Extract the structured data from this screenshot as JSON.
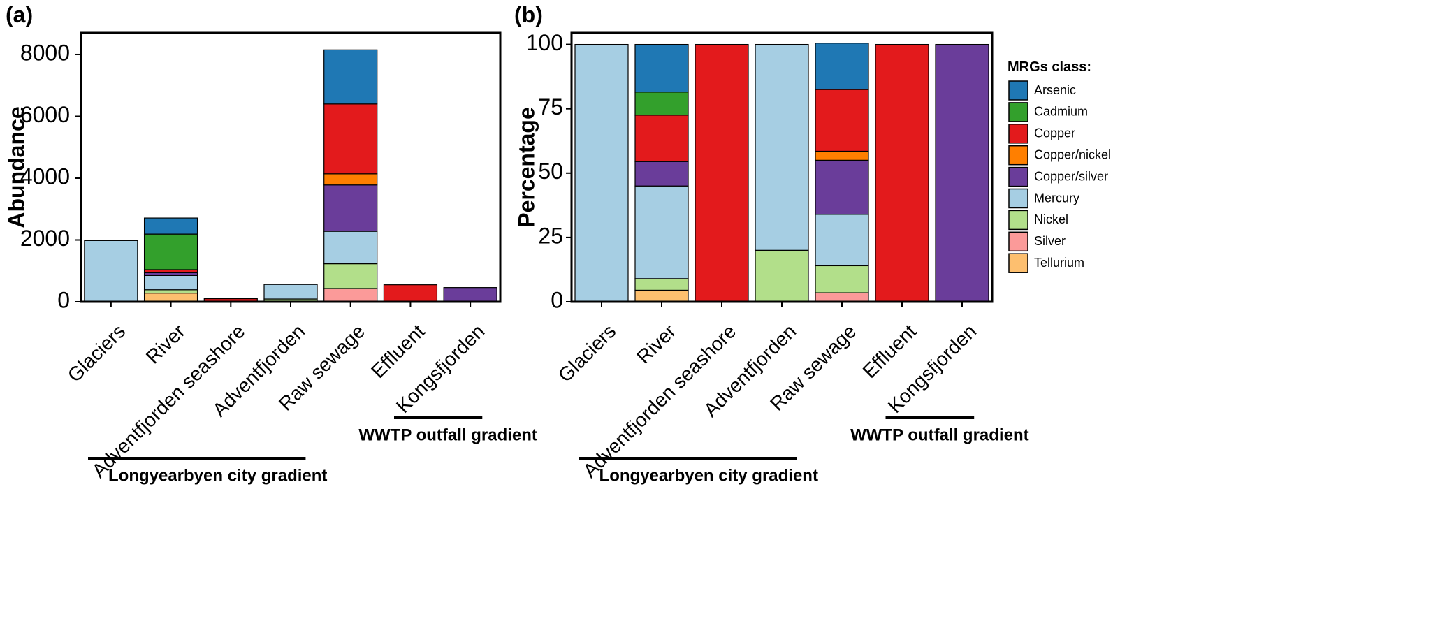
{
  "colors": {
    "Arsenic": "#1f78b4",
    "Cadmium": "#33a02c",
    "Copper": "#e31a1c",
    "Copper/nickel": "#ff7f00",
    "Copper/silver": "#6a3d9a",
    "Mercury": "#a6cee3",
    "Nickel": "#b2df8a",
    "Silver": "#fb9a99",
    "Tellurium": "#fdbf6f"
  },
  "legend": {
    "title": "MRGs class:",
    "items": [
      "Arsenic",
      "Cadmium",
      "Copper",
      "Copper/nickel",
      "Copper/silver",
      "Mercury",
      "Nickel",
      "Silver",
      "Tellurium"
    ]
  },
  "groups": {
    "city": "Longyearbyen city gradient",
    "wwtp": "WWTP outfall gradient"
  },
  "chart_data": [
    {
      "type": "bar",
      "stacked": true,
      "panel_label": "(a)",
      "ylabel": "Abundance",
      "ylim": [
        0,
        8700
      ],
      "yticks": [
        0,
        2000,
        4000,
        6000,
        8000
      ],
      "categories": [
        "Glaciers",
        "River",
        "Adventfjorden seashore",
        "Adventfjorden",
        "Raw sewage",
        "Effluent",
        "Kongsfjorden"
      ],
      "series": [
        {
          "name": "Tellurium",
          "values": [
            0,
            280,
            0,
            0,
            0,
            0,
            0
          ]
        },
        {
          "name": "Silver",
          "values": [
            0,
            0,
            0,
            0,
            430,
            0,
            0
          ]
        },
        {
          "name": "Nickel",
          "values": [
            0,
            110,
            0,
            90,
            800,
            0,
            0
          ]
        },
        {
          "name": "Mercury",
          "values": [
            1980,
            460,
            0,
            470,
            1050,
            0,
            0
          ]
        },
        {
          "name": "Copper/silver",
          "values": [
            0,
            90,
            0,
            0,
            1500,
            0,
            460
          ]
        },
        {
          "name": "Copper/nickel",
          "values": [
            0,
            0,
            0,
            0,
            360,
            0,
            0
          ]
        },
        {
          "name": "Copper",
          "values": [
            0,
            100,
            100,
            0,
            2260,
            550,
            0
          ]
        },
        {
          "name": "Cadmium",
          "values": [
            0,
            1150,
            0,
            0,
            0,
            0,
            0
          ]
        },
        {
          "name": "Arsenic",
          "values": [
            0,
            520,
            0,
            0,
            1750,
            0,
            0
          ]
        }
      ]
    },
    {
      "type": "bar",
      "stacked": true,
      "panel_label": "(b)",
      "ylabel": "Percentage",
      "ylim": [
        0,
        104.5
      ],
      "yticks": [
        0,
        25,
        50,
        75,
        100
      ],
      "categories": [
        "Glaciers",
        "River",
        "Adventfjorden seashore",
        "Adventfjorden",
        "Raw sewage",
        "Effluent",
        "Kongsfjorden"
      ],
      "series": [
        {
          "name": "Tellurium",
          "values": [
            0,
            4.5,
            0,
            0,
            0,
            0,
            0
          ]
        },
        {
          "name": "Silver",
          "values": [
            0,
            0,
            0,
            0,
            3.5,
            0,
            0
          ]
        },
        {
          "name": "Nickel",
          "values": [
            0,
            4.5,
            0,
            20,
            10.5,
            0,
            0
          ]
        },
        {
          "name": "Mercury",
          "values": [
            100,
            36,
            0,
            80,
            20,
            0,
            0
          ]
        },
        {
          "name": "Copper/silver",
          "values": [
            0,
            9.5,
            0,
            0,
            21,
            0,
            100
          ]
        },
        {
          "name": "Copper/nickel",
          "values": [
            0,
            0,
            0,
            0,
            3.5,
            0,
            0
          ]
        },
        {
          "name": "Copper",
          "values": [
            0,
            18,
            100,
            0,
            24,
            100,
            0
          ]
        },
        {
          "name": "Cadmium",
          "values": [
            0,
            9,
            0,
            0,
            0,
            0,
            0
          ]
        },
        {
          "name": "Arsenic",
          "values": [
            0,
            18.5,
            0,
            0,
            18,
            0,
            0
          ]
        }
      ]
    }
  ]
}
